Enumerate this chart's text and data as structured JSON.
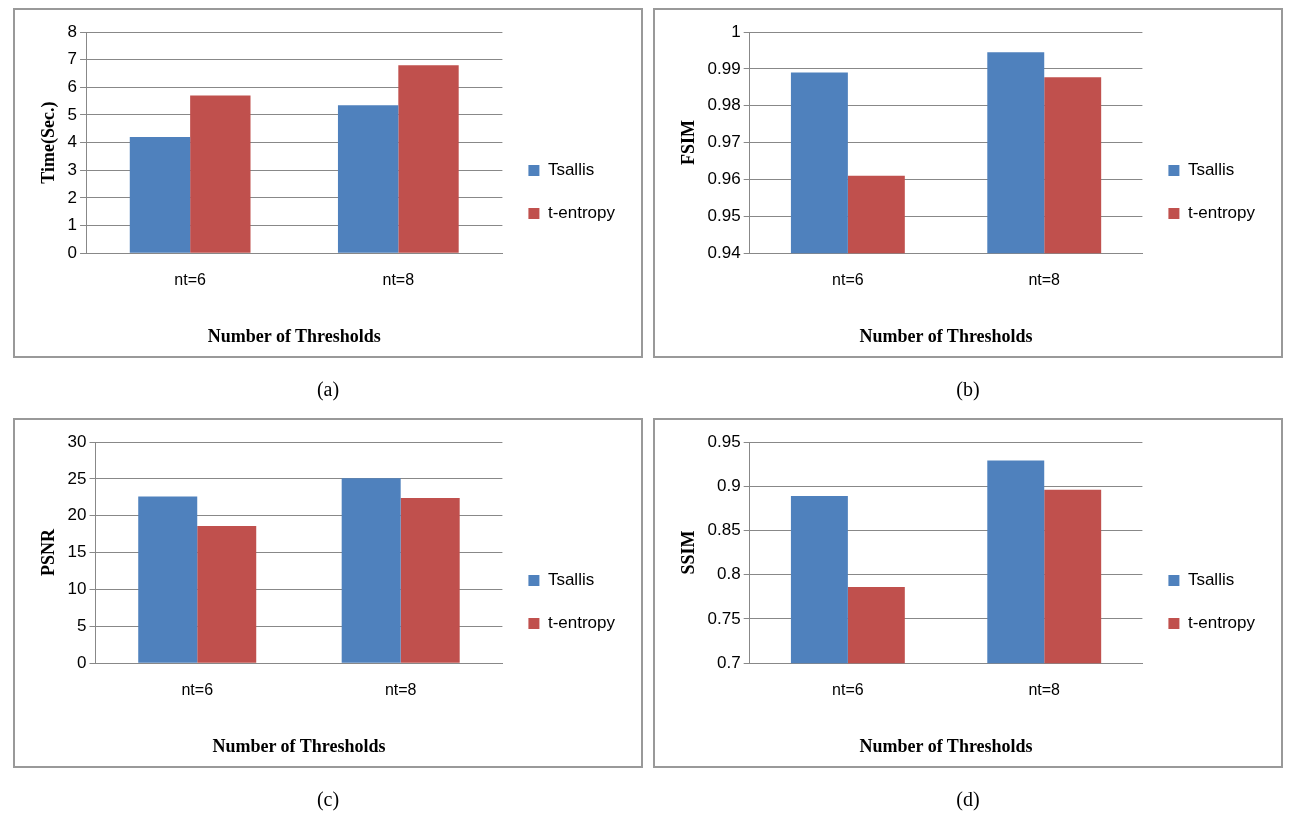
{
  "chart_data": [
    {
      "type": "bar",
      "xlabel": "Number of Thresholds",
      "ylabel": "Time(Sec.)",
      "categories": [
        "nt=6",
        "nt=8"
      ],
      "series": [
        {
          "name": "Tsallis",
          "color": "#4f81bd",
          "values": [
            4.2,
            5.35
          ]
        },
        {
          "name": "t-entropy",
          "color": "#c0504d",
          "values": [
            5.7,
            6.8
          ]
        }
      ],
      "ylim": [
        0,
        8
      ],
      "yticks": [
        0,
        1,
        2,
        3,
        4,
        5,
        6,
        7,
        8
      ],
      "grid": "y",
      "legend": "right",
      "annotations": [
        "(a)"
      ]
    },
    {
      "type": "bar",
      "xlabel": "Number of Thresholds",
      "ylabel": "FSIM",
      "categories": [
        "nt=6",
        "nt=8"
      ],
      "series": [
        {
          "name": "Tsallis",
          "color": "#4f81bd",
          "values": [
            0.989,
            0.9945
          ]
        },
        {
          "name": "t-entropy",
          "color": "#c0504d",
          "values": [
            0.961,
            0.9877
          ]
        }
      ],
      "ylim": [
        0.94,
        1
      ],
      "yticks": [
        0.94,
        0.95,
        0.96,
        0.97,
        0.98,
        0.99,
        1
      ],
      "grid": "y",
      "legend": "right",
      "annotations": [
        "(b)"
      ]
    },
    {
      "type": "bar",
      "xlabel": "Number of Thresholds",
      "ylabel": "PSNR",
      "categories": [
        "nt=6",
        "nt=8"
      ],
      "series": [
        {
          "name": "Tsallis",
          "color": "#4f81bd",
          "values": [
            22.6,
            25.1
          ]
        },
        {
          "name": "t-entropy",
          "color": "#c0504d",
          "values": [
            18.6,
            22.4
          ]
        }
      ],
      "ylim": [
        0,
        30
      ],
      "yticks": [
        0,
        5,
        10,
        15,
        20,
        25,
        30
      ],
      "grid": "y",
      "legend": "right",
      "annotations": [
        "(c)"
      ]
    },
    {
      "type": "bar",
      "xlabel": "Number of Thresholds",
      "ylabel": "SSIM",
      "categories": [
        "nt=6",
        "nt=8"
      ],
      "series": [
        {
          "name": "Tsallis",
          "color": "#4f81bd",
          "values": [
            0.889,
            0.929
          ]
        },
        {
          "name": "t-entropy",
          "color": "#c0504d",
          "values": [
            0.786,
            0.896
          ]
        }
      ],
      "ylim": [
        0.7,
        0.95
      ],
      "yticks": [
        0.7,
        0.75,
        0.8,
        0.85,
        0.9,
        0.95
      ],
      "grid": "y",
      "legend": "right",
      "annotations": [
        "(d)"
      ]
    }
  ]
}
